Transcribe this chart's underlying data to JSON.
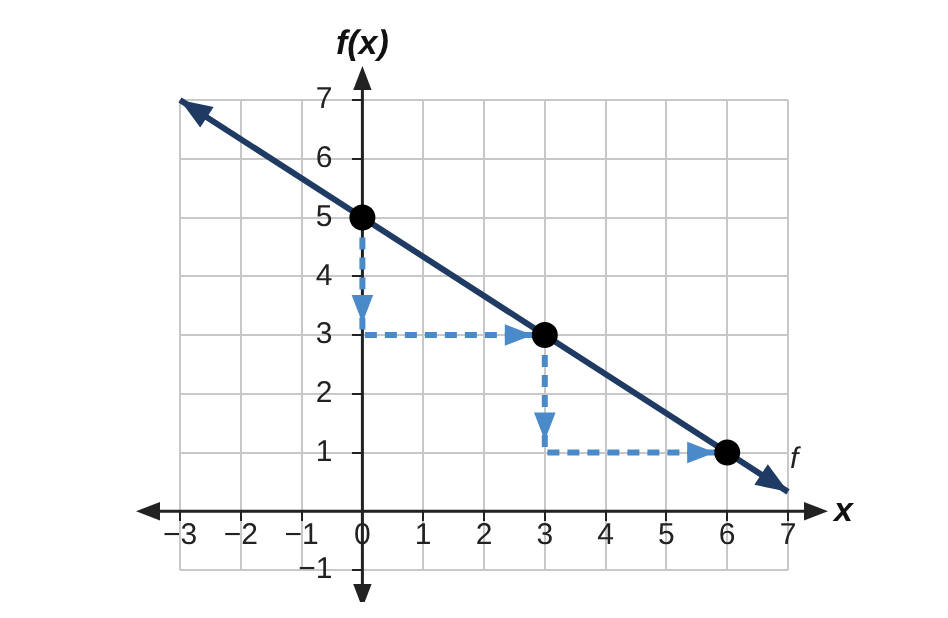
{
  "chart_data": {
    "type": "line",
    "xlabel": "x",
    "ylabel": "f(x)",
    "xlim": [
      -3,
      7
    ],
    "ylim": [
      -1,
      7
    ],
    "xticks": [
      {
        "value": -3,
        "label": "−3"
      },
      {
        "value": -2,
        "label": "−2"
      },
      {
        "value": -1,
        "label": "−1"
      },
      0,
      1,
      2,
      3,
      4,
      5,
      6,
      7
    ],
    "yticks": [
      {
        "value": -1,
        "label": "−1"
      },
      {
        "value": 0,
        "label": null
      },
      1,
      2,
      3,
      4,
      5,
      6,
      7
    ],
    "grid": true,
    "series": [
      {
        "name": "f",
        "color": "#1f3b63",
        "x": [
          -3,
          0,
          3,
          6,
          7
        ],
        "values": [
          7,
          5,
          3,
          1,
          0.33
        ],
        "marker": "none",
        "line_style": "solid"
      },
      {
        "color": "#4a8ac9",
        "x": [
          0,
          0,
          3,
          3,
          6
        ],
        "values": [
          5,
          3,
          3,
          1,
          1
        ],
        "marker": "none",
        "line_style": "dashed"
      },
      {
        "type": "scatter",
        "color": "#000000",
        "x": [
          0,
          3,
          6
        ],
        "values": [
          5,
          3,
          1
        ],
        "marker": "circle"
      }
    ]
  }
}
